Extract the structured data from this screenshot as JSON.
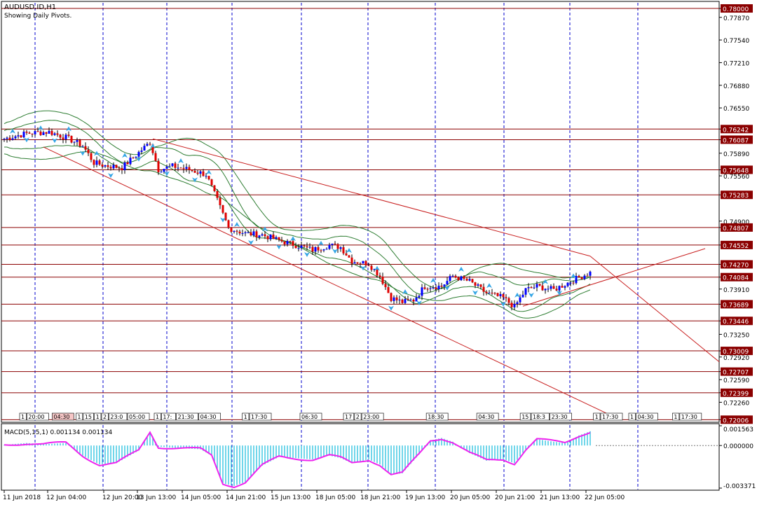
{
  "header": {
    "symbol_line": "AUDUSD.ID,H1",
    "pivots_line": "Showing Daily Pivots."
  },
  "colors": {
    "bull": "#0000ff",
    "bear": "#e00000",
    "grid": "#0000cc",
    "line": "#c81e1e",
    "band": "#2e7d32",
    "arrow": "#35a6e6",
    "macd_line": "#ee22ee",
    "macd_hist": "#33c4e0"
  },
  "price_axis": {
    "range": [
      0.71989,
      0.78082
    ],
    "ticks": [
      "0.78000",
      "0.77870",
      "0.77540",
      "0.77210",
      "0.76880",
      "0.76550",
      "0.76242",
      "0.76087",
      "0.75890",
      "0.75648",
      "0.75560",
      "0.75283",
      "0.74900",
      "0.74807",
      "0.74552",
      "0.74270",
      "0.74084",
      "0.73910",
      "0.73689",
      "0.73446",
      "0.73250",
      "0.73009",
      "0.72920",
      "0.72707",
      "0.72590",
      "0.72399",
      "0.72260",
      "0.72006"
    ]
  },
  "pivot_levels": [
    {
      "price": 0.78,
      "label": "0.78000"
    },
    {
      "price": 0.76242,
      "label": "0.76242"
    },
    {
      "price": 0.76087,
      "label": "0.76087"
    },
    {
      "price": 0.75648,
      "label": "0.75648"
    },
    {
      "price": 0.75283,
      "label": "0.75283"
    },
    {
      "price": 0.74807,
      "label": "0.74807"
    },
    {
      "price": 0.74552,
      "label": "0.74552"
    },
    {
      "price": 0.7427,
      "label": "0.74270"
    },
    {
      "price": 0.74084,
      "label": "0.74084"
    },
    {
      "price": 0.73689,
      "label": "0.73689"
    },
    {
      "price": 0.73446,
      "label": "0.73446"
    },
    {
      "price": 0.73009,
      "label": "0.73009"
    },
    {
      "price": 0.72707,
      "label": "0.72707"
    },
    {
      "price": 0.72399,
      "label": "0.72399"
    },
    {
      "price": 0.72006,
      "label": "0.72006"
    }
  ],
  "time_labels": [
    "11 Jun 2018",
    "12 Jun 04:00",
    "12 Jun 20:00",
    "13 Jun 13:00",
    "14 Jun 05:00",
    "14 Jun 21:00",
    "15 Jun 13:00",
    "18 Jun 05:00",
    "18 Jun 21:00",
    "19 Jun 13:00",
    "20 Jun 05:00",
    "20 Jun 21:00",
    "21 Jun 13:00",
    "22 Jun 05:00"
  ],
  "session_labels": [
    {
      "start": 0.0,
      "labels": [
        "1",
        "20:00"
      ]
    },
    {
      "start": 0.0,
      "labels": [
        "04:30"
      ],
      "highlight": true
    },
    {
      "start": 0.06,
      "labels": [
        "1",
        "15",
        "1",
        "2",
        "23:0",
        "05:00"
      ]
    },
    {
      "start": 0.13,
      "labels": [
        "1",
        "17:",
        "21:30",
        "04:30"
      ]
    },
    {
      "start": 0.2,
      "labels": [
        "1",
        "17:30"
      ]
    },
    {
      "start": 0.27,
      "labels": [
        "06:30"
      ]
    },
    {
      "start": 0.3,
      "labels": [
        "17",
        "2",
        "23:00"
      ]
    },
    {
      "start": 0.4,
      "labels": [
        "18:30"
      ]
    },
    {
      "start": 0.46,
      "labels": [
        "04:30"
      ]
    },
    {
      "start": 0.5,
      "labels": [
        "15",
        "18:3",
        "23:30"
      ]
    },
    {
      "start": 0.58,
      "labels": [
        "1",
        "17:30"
      ]
    },
    {
      "start": 0.62,
      "labels": [
        "1",
        "04:30"
      ]
    },
    {
      "start": 0.67,
      "labels": [
        "1",
        "17:30"
      ]
    }
  ],
  "macd": {
    "title": "MACD(5,15,1) 0.001134 0.001134",
    "range": [
      -0.003371,
      0.001563
    ],
    "ticks": [
      "0.001563",
      "0.000000",
      "-0.003371"
    ]
  },
  "chart_data": {
    "type": "candlestick",
    "title": "AUDUSD.ID,H1",
    "bar_count": 210,
    "close_anchors": [
      [
        0,
        0.761
      ],
      [
        8,
        0.7618
      ],
      [
        16,
        0.762
      ],
      [
        22,
        0.7612
      ],
      [
        28,
        0.76
      ],
      [
        32,
        0.7575
      ],
      [
        36,
        0.7571
      ],
      [
        42,
        0.7568
      ],
      [
        48,
        0.759
      ],
      [
        52,
        0.7605
      ],
      [
        55,
        0.7565
      ],
      [
        60,
        0.757
      ],
      [
        66,
        0.7565
      ],
      [
        72,
        0.7558
      ],
      [
        76,
        0.752
      ],
      [
        80,
        0.748
      ],
      [
        86,
        0.7472
      ],
      [
        92,
        0.747
      ],
      [
        98,
        0.7462
      ],
      [
        104,
        0.7455
      ],
      [
        110,
        0.7448
      ],
      [
        116,
        0.7455
      ],
      [
        120,
        0.7452
      ],
      [
        124,
        0.7432
      ],
      [
        130,
        0.7428
      ],
      [
        134,
        0.741
      ],
      [
        138,
        0.7378
      ],
      [
        142,
        0.7372
      ],
      [
        146,
        0.7375
      ],
      [
        150,
        0.7395
      ],
      [
        156,
        0.7395
      ],
      [
        160,
        0.741
      ],
      [
        166,
        0.7402
      ],
      [
        172,
        0.7385
      ],
      [
        178,
        0.7378
      ],
      [
        182,
        0.7365
      ],
      [
        186,
        0.739
      ],
      [
        190,
        0.7395
      ],
      [
        196,
        0.739
      ],
      [
        200,
        0.7398
      ],
      [
        205,
        0.7408
      ],
      [
        209,
        0.7415
      ]
    ],
    "channel_upper": [
      [
        53,
        0.761
      ],
      [
        209,
        0.7439
      ]
    ],
    "channel_lower": [
      [
        14,
        0.7598
      ],
      [
        220,
        0.72
      ]
    ],
    "support_line": [
      [
        185,
        0.7366
      ],
      [
        250,
        0.745
      ]
    ],
    "macd_anchors": [
      [
        0,
        5e-05
      ],
      [
        8,
        0.0002
      ],
      [
        14,
        0.0001
      ],
      [
        22,
        0.0002
      ],
      [
        28,
        -0.0008
      ],
      [
        34,
        -0.0015
      ],
      [
        40,
        -0.0014
      ],
      [
        48,
        -0.0004
      ],
      [
        52,
        0.0011
      ],
      [
        55,
        -0.0001
      ],
      [
        62,
        -0.0002
      ],
      [
        70,
        -0.0003
      ],
      [
        74,
        -0.0008
      ],
      [
        78,
        -0.003
      ],
      [
        82,
        -0.0032
      ],
      [
        86,
        -0.0029
      ],
      [
        92,
        -0.0016
      ],
      [
        98,
        -0.0009
      ],
      [
        104,
        -0.001
      ],
      [
        110,
        -0.0011
      ],
      [
        116,
        -0.0008
      ],
      [
        120,
        -0.001
      ],
      [
        124,
        -0.0014
      ],
      [
        130,
        -0.0011
      ],
      [
        134,
        -0.0015
      ],
      [
        138,
        -0.0023
      ],
      [
        142,
        -0.0022
      ],
      [
        148,
        -0.0007
      ],
      [
        152,
        0.0004
      ],
      [
        156,
        0.0006
      ],
      [
        160,
        0.0003
      ],
      [
        166,
        -0.0006
      ],
      [
        172,
        -0.0012
      ],
      [
        178,
        -0.0011
      ],
      [
        182,
        -0.0014
      ],
      [
        186,
        -0.0003
      ],
      [
        190,
        0.0005
      ],
      [
        196,
        0.0003
      ],
      [
        200,
        0.0002
      ],
      [
        205,
        0.0008
      ],
      [
        209,
        0.00113
      ]
    ],
    "ylim": [
      0.71989,
      0.78082
    ]
  }
}
